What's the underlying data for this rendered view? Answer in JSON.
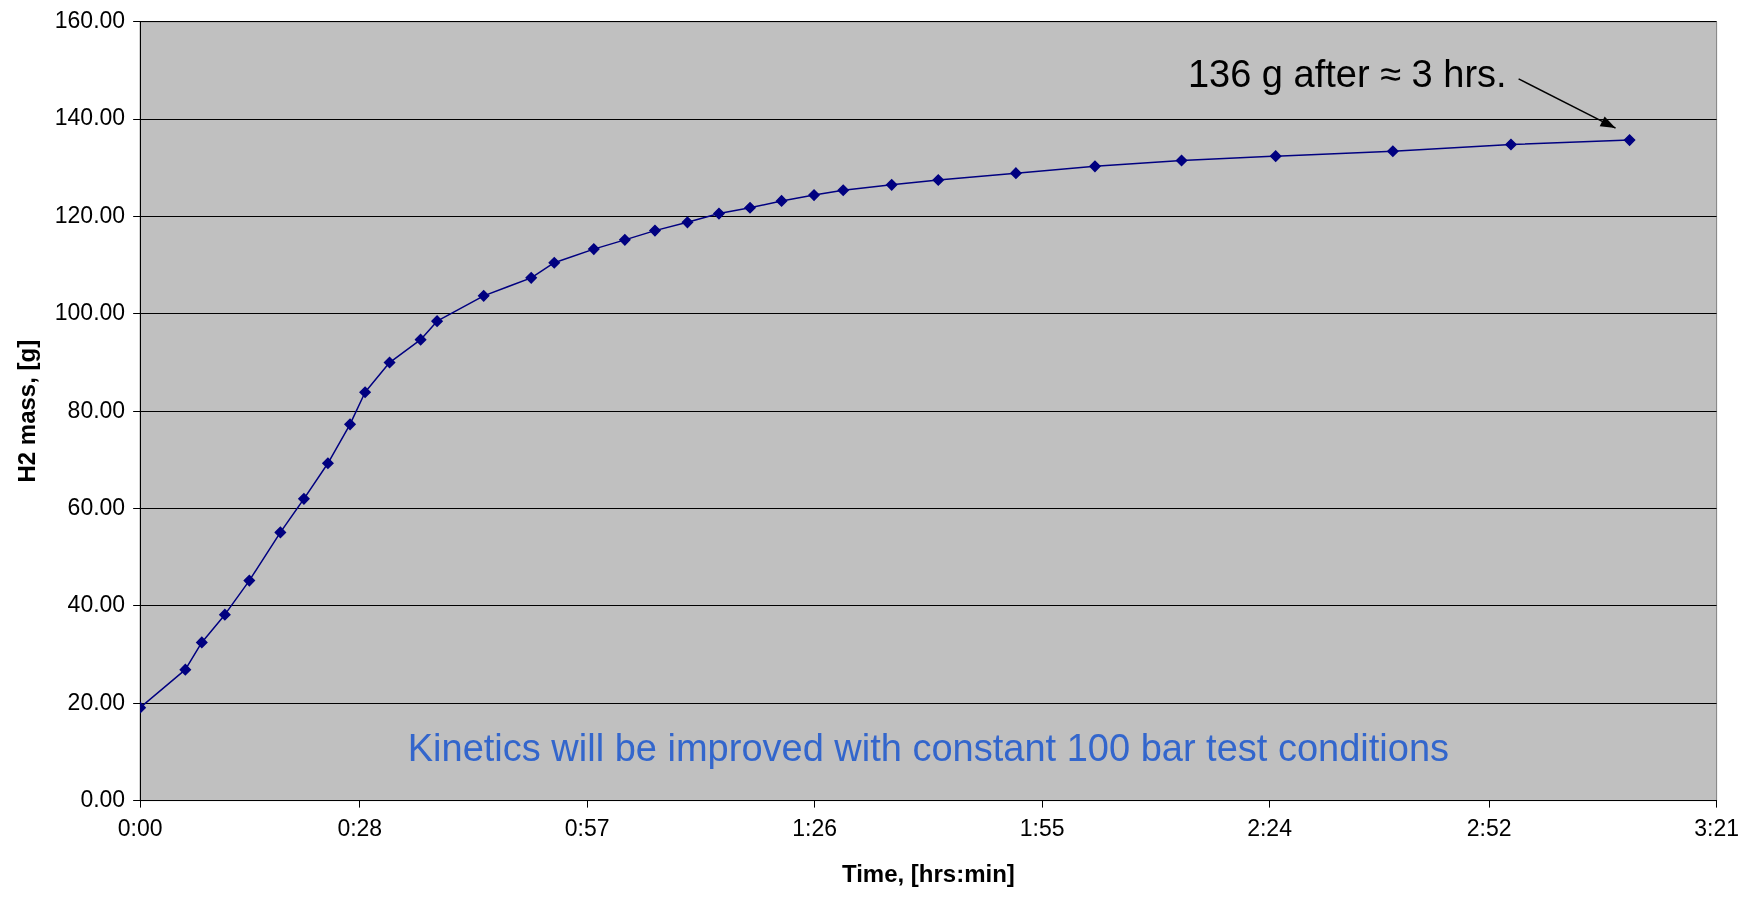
{
  "chart_data": {
    "type": "line",
    "xlabel": "Time, [hrs:min]",
    "ylabel": "H2 mass, [g]",
    "x": [
      0,
      0.096,
      0.131,
      0.18,
      0.232,
      0.298,
      0.348,
      0.399,
      0.446,
      0.478,
      0.53,
      0.596,
      0.631,
      0.73,
      0.831,
      0.88,
      0.964,
      1.03,
      1.094,
      1.163,
      1.23,
      1.296,
      1.363,
      1.432,
      1.494,
      1.597,
      1.696,
      1.861,
      2.029,
      2.213,
      2.413,
      2.662,
      2.913,
      3.165
    ],
    "series": [
      {
        "color": "#000080",
        "values": [
          19.1,
          26.9,
          32.5,
          38.2,
          45.2,
          55.1,
          62.0,
          69.3,
          77.3,
          83.9,
          90.0,
          94.7,
          98.5,
          103.7,
          107.4,
          110.5,
          113.3,
          115.2,
          117.1,
          118.8,
          120.6,
          121.8,
          123.2,
          124.4,
          125.4,
          126.5,
          127.5,
          128.9,
          130.3,
          131.5,
          132.4,
          133.4,
          134.8,
          135.7
        ]
      }
    ],
    "xlim": [
      0,
      3.35
    ],
    "xticks": [
      {
        "value": 0,
        "label": "0:00"
      },
      {
        "value": 0.4667,
        "label": "0:28"
      },
      {
        "value": 0.95,
        "label": "0:57"
      },
      {
        "value": 1.4333,
        "label": "1:26"
      },
      {
        "value": 1.9167,
        "label": "1:55"
      },
      {
        "value": 2.4,
        "label": "2:24"
      },
      {
        "value": 2.8667,
        "label": "2:52"
      },
      {
        "value": 3.35,
        "label": "3:21"
      }
    ],
    "ylim": [
      0,
      160
    ],
    "yticks": [
      {
        "value": 0,
        "label": "0.00"
      },
      {
        "value": 20,
        "label": "20.00"
      },
      {
        "value": 40,
        "label": "40.00"
      },
      {
        "value": 60,
        "label": "60.00"
      },
      {
        "value": 80,
        "label": "80.00"
      },
      {
        "value": 100,
        "label": "100.00"
      },
      {
        "value": 120,
        "label": "120.00"
      },
      {
        "value": 140,
        "label": "140.00"
      },
      {
        "value": 160,
        "label": "160.00"
      }
    ],
    "grid": "y",
    "legend": false,
    "marker": "diamond",
    "line_style": "solid",
    "annotations": [
      "136 g after ≈ 3 hrs.",
      "Kinetics will be improved with constant 100 bar test conditions"
    ]
  }
}
